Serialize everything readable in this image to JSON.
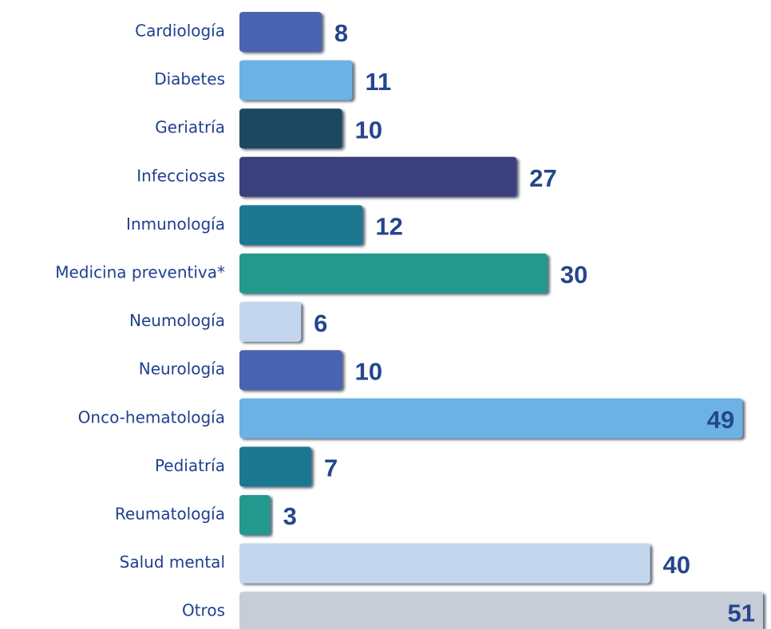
{
  "chart_data": {
    "type": "bar",
    "categories": [
      "Cardiología",
      "Diabetes",
      "Geriatría",
      "Infecciosas",
      "Inmunología",
      "Medicina preventiva*",
      "Neumología",
      "Neurología",
      "Onco-hematología",
      "Pediatría",
      "Reumatología",
      "Salud mental",
      "Otros"
    ],
    "values": [
      8,
      11,
      10,
      27,
      12,
      30,
      6,
      10,
      49,
      7,
      3,
      40,
      51
    ],
    "colors": [
      "#4a63b0",
      "#6cb2e4",
      "#1b4a5e",
      "#3a3f7c",
      "#1e7891",
      "#23998c",
      "#c4d6ee",
      "#4a63b0",
      "#6cb2e4",
      "#1e7891",
      "#23998c",
      "#c4d6ee",
      "#c7cdd6"
    ]
  }
}
